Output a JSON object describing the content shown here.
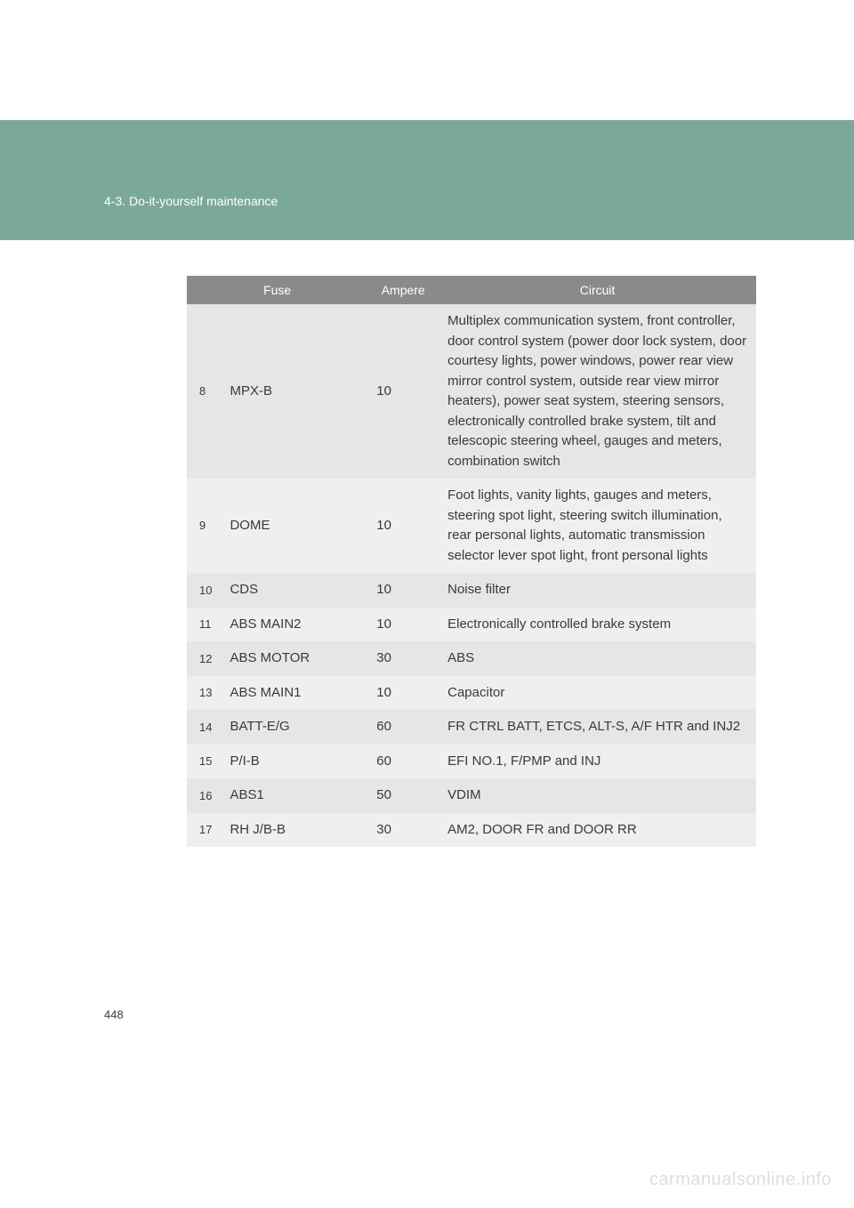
{
  "header": {
    "section_title": "4-3. Do-it-yourself maintenance"
  },
  "table": {
    "headers": {
      "fuse": "Fuse",
      "ampere": "Ampere",
      "circuit": "Circuit"
    },
    "rows": [
      {
        "num": "8",
        "fuse": "MPX-B",
        "ampere": "10",
        "circuit": "Multiplex communication system, front controller, door control system (power door lock system, door courtesy lights, power windows, power rear view mirror control system, outside rear view mirror heaters), power seat system, steering sensors, electronically controlled brake system, tilt and telescopic steering wheel, gauges and meters, combination switch"
      },
      {
        "num": "9",
        "fuse": "DOME",
        "ampere": "10",
        "circuit": "Foot lights, vanity lights, gauges and meters, steering spot light, steering switch illumination, rear personal lights, automatic transmission selector lever spot light, front personal lights"
      },
      {
        "num": "10",
        "fuse": "CDS",
        "ampere": "10",
        "circuit": "Noise filter"
      },
      {
        "num": "11",
        "fuse": "ABS MAIN2",
        "ampere": "10",
        "circuit": "Electronically controlled brake system"
      },
      {
        "num": "12",
        "fuse": "ABS MOTOR",
        "ampere": "30",
        "circuit": "ABS"
      },
      {
        "num": "13",
        "fuse": "ABS MAIN1",
        "ampere": "10",
        "circuit": "Capacitor"
      },
      {
        "num": "14",
        "fuse": "BATT-E/G",
        "ampere": "60",
        "circuit": "FR CTRL BATT, ETCS, ALT-S, A/F HTR and INJ2"
      },
      {
        "num": "15",
        "fuse": "P/I-B",
        "ampere": "60",
        "circuit": "EFI NO.1, F/PMP and INJ"
      },
      {
        "num": "16",
        "fuse": "ABS1",
        "ampere": "50",
        "circuit": "VDIM"
      },
      {
        "num": "17",
        "fuse": "RH J/B-B",
        "ampere": "30",
        "circuit": "AM2, DOOR FR and DOOR RR"
      }
    ]
  },
  "page_number": "448",
  "watermark": "carmanualsonline.info"
}
